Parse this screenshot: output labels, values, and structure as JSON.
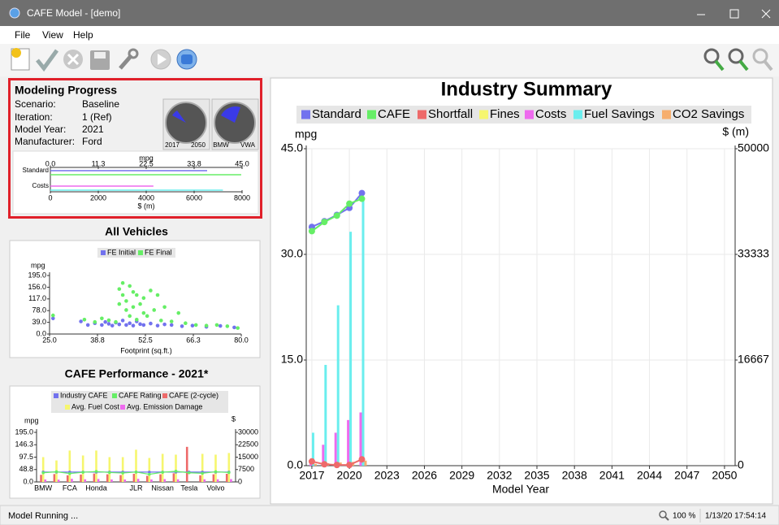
{
  "window": {
    "title": "CAFE Model - [demo]"
  },
  "menu": [
    "File",
    "View",
    "Help"
  ],
  "progress": {
    "title": "Modeling Progress",
    "rows": [
      {
        "label": "Scenario:",
        "value": "Baseline"
      },
      {
        "label": "Iteration:",
        "value": "1 (Ref)"
      },
      {
        "label": "Model Year:",
        "value": "2021"
      },
      {
        "label": "Manufacturer:",
        "value": "Ford"
      }
    ],
    "gauges": [
      [
        "2017",
        "2050"
      ],
      [
        "BMW",
        "VWA"
      ]
    ]
  },
  "status": {
    "message": "Model Running ...",
    "zoom": "100 %",
    "time": "1/13/20 17:54:14"
  },
  "chart_data": [
    {
      "type": "combo",
      "title": "Industry Summary",
      "xlabel": "Model Year",
      "ylabel": "mpg",
      "y2label": "$ (m)",
      "x": [
        2017,
        2018,
        2019,
        2020,
        2021
      ],
      "xlim": [
        2016.55,
        2050.85
      ],
      "xticks": [
        2017,
        2020,
        2023,
        2026,
        2029,
        2032,
        2035,
        2038,
        2041,
        2044,
        2047,
        2050
      ],
      "ylim": [
        0,
        45
      ],
      "yticks": [
        {
          "value": 0,
          "label": "0.0"
        },
        {
          "value": 15,
          "label": "15.0"
        },
        {
          "value": 30,
          "label": "30.0"
        },
        {
          "value": 45,
          "label": "45.0"
        }
      ],
      "y2lim": [
        0,
        50000
      ],
      "y2ticks": [
        0,
        16667,
        33333,
        50000
      ],
      "grid": true,
      "legend": "top",
      "series": [
        {
          "name": "Standard",
          "color": "#7272ee",
          "type": "line",
          "values": [
            33.9,
            34.7,
            35.6,
            36.6,
            38.7
          ]
        },
        {
          "name": "CAFE",
          "color": "#66ee66",
          "type": "line",
          "values": [
            33.3,
            34.6,
            35.5,
            37.2,
            37.9
          ]
        },
        {
          "name": "Shortfall",
          "color": "#ee6a6a",
          "type": "line",
          "values": [
            0.6,
            0.2,
            0.1,
            0.1,
            0.9
          ]
        },
        {
          "name": "Fines",
          "color": "#f6f66e",
          "type": "bar",
          "axis": "y2",
          "values": [
            0,
            0,
            0,
            0,
            0
          ]
        },
        {
          "name": "Costs",
          "color": "#ee6aee",
          "type": "bar",
          "axis": "y2",
          "values": [
            600,
            3300,
            5200,
            7200,
            8400
          ]
        },
        {
          "name": "Fuel Savings",
          "color": "#6aeeee",
          "type": "bar",
          "axis": "y2",
          "values": [
            5200,
            15900,
            25300,
            36900,
            42200
          ]
        },
        {
          "name": "CO2 Savings",
          "color": "#f6ae6e",
          "type": "bar",
          "axis": "y2",
          "values": [
            300,
            400,
            500,
            600,
            800
          ]
        }
      ]
    },
    {
      "type": "bar",
      "orientation": "horizontal",
      "categories": [
        "Standard",
        "Costs"
      ],
      "xlabel": "mpg",
      "x2label": "$ (m)",
      "xlim": [
        0,
        45
      ],
      "xticks": [
        {
          "value": 0,
          "label": "0.0"
        },
        {
          "value": 11.25,
          "label": "11.3"
        },
        {
          "value": 22.5,
          "label": "22.5"
        },
        {
          "value": 33.75,
          "label": "33.8"
        },
        {
          "value": 45,
          "label": "45.0"
        }
      ],
      "x2lim": [
        0,
        8000
      ],
      "x2ticks": [
        0,
        2000,
        4000,
        6000,
        8000
      ],
      "series": [
        {
          "color": "#7272ee",
          "values": [
            36.8,
            null
          ]
        },
        {
          "color": "#66ee66",
          "values": [
            44.8,
            null
          ]
        },
        {
          "color": "#ee6aee",
          "axis": "x2",
          "values": [
            null,
            4300
          ]
        },
        {
          "color": "#6aeeee",
          "axis": "x2",
          "values": [
            null,
            7200
          ]
        }
      ]
    },
    {
      "type": "scatter",
      "title": "All Vehicles",
      "xlabel": "Footprint (sq.ft.)",
      "ylabel": "mpg",
      "xlim": [
        25,
        80
      ],
      "xticks": [
        {
          "value": 25,
          "label": "25.0"
        },
        {
          "value": 38.75,
          "label": "38.8"
        },
        {
          "value": 52.5,
          "label": "52.5"
        },
        {
          "value": 66.25,
          "label": "66.3"
        },
        {
          "value": 80,
          "label": "80.0"
        }
      ],
      "ylim": [
        0,
        195
      ],
      "yticks": [
        {
          "value": 0,
          "label": "0.0"
        },
        {
          "value": 39,
          "label": "39.0"
        },
        {
          "value": 78,
          "label": "78.0"
        },
        {
          "value": 117,
          "label": "117.0"
        },
        {
          "value": 156,
          "label": "156.0"
        },
        {
          "value": 195,
          "label": "195.0"
        }
      ],
      "legend": "top",
      "series": [
        {
          "name": "FE Initial",
          "color": "#7272ee",
          "x": [
            26,
            34,
            36,
            38,
            40,
            41,
            42,
            43,
            44,
            45,
            46,
            47,
            48,
            49,
            50,
            51,
            52,
            54,
            56,
            58,
            60,
            63,
            66,
            70,
            74,
            78
          ],
          "values": [
            52,
            42,
            30,
            36,
            30,
            40,
            34,
            28,
            38,
            32,
            45,
            30,
            36,
            28,
            42,
            33,
            30,
            35,
            28,
            32,
            30,
            26,
            28,
            24,
            27,
            22
          ]
        },
        {
          "name": "FE Final",
          "color": "#66ee66",
          "x": [
            26,
            35,
            38,
            40,
            42,
            44,
            45,
            45,
            46,
            46,
            47,
            47,
            48,
            48,
            49,
            49,
            50,
            50,
            51,
            52,
            52,
            53,
            54,
            55,
            56,
            57,
            58,
            60,
            62,
            64,
            67,
            70,
            73,
            76,
            79
          ],
          "values": [
            62,
            48,
            40,
            52,
            46,
            40,
            100,
            150,
            170,
            130,
            110,
            80,
            160,
            60,
            140,
            90,
            130,
            48,
            100,
            70,
            120,
            60,
            145,
            80,
            130,
            45,
            90,
            42,
            70,
            36,
            30,
            28,
            30,
            26,
            20
          ]
        }
      ]
    },
    {
      "type": "combo",
      "title": "CAFE Performance - 2021*",
      "ylabel": "mpg",
      "y2label": "$",
      "categories": [
        "BMW",
        null,
        "FCA",
        null,
        "Honda",
        null,
        null,
        "JLR",
        null,
        "Nissan",
        null,
        "Tesla",
        null,
        "Volvo",
        null
      ],
      "ylim": [
        0,
        195
      ],
      "yticks": [
        {
          "value": 0,
          "label": "0.0"
        },
        {
          "value": 48.75,
          "label": "48.8"
        },
        {
          "value": 97.5,
          "label": "97.5"
        },
        {
          "value": 146.25,
          "label": "146.3"
        },
        {
          "value": 195,
          "label": "195.0"
        }
      ],
      "y2lim": [
        0,
        30000
      ],
      "y2ticks": [
        0,
        7500,
        15000,
        22500,
        30000
      ],
      "legend": "top",
      "series": [
        {
          "name": "Industry CAFE",
          "color": "#7272ee",
          "type": "line",
          "values": [
            38.7,
            38.7,
            38.7,
            38.7,
            38.7,
            38.7,
            38.7,
            38.7,
            38.7,
            38.7,
            38.7,
            38.7,
            38.7,
            38.7,
            38.7
          ]
        },
        {
          "name": "CAFE Rating",
          "color": "#66ee66",
          "type": "line",
          "values": [
            36,
            40,
            33,
            38,
            41,
            37,
            35,
            39,
            30,
            38,
            42,
            36,
            34,
            40,
            37
          ]
        },
        {
          "name": "CAFE (2-cycle)",
          "color": "#ee6a6a",
          "type": "bar",
          "values": [
            28,
            31,
            26,
            29,
            33,
            30,
            27,
            32,
            24,
            30,
            34,
            138,
            26,
            30,
            32
          ]
        },
        {
          "name": "Avg. Fuel Cost",
          "color": "#f6f66e",
          "type": "bar",
          "axis": "y2",
          "values": [
            15000,
            13000,
            19000,
            16000,
            19000,
            15000,
            15000,
            19500,
            14500,
            17000,
            16500,
            0,
            17000,
            16500,
            17500
          ]
        },
        {
          "name": "Avg. Emission Damage",
          "color": "#ee6aee",
          "type": "bar",
          "axis": "y2",
          "values": [
            1500,
            1400,
            1900,
            1600,
            1800,
            1500,
            1500,
            1900,
            1500,
            1700,
            1600,
            0,
            1600,
            1600,
            1700
          ]
        }
      ]
    }
  ]
}
